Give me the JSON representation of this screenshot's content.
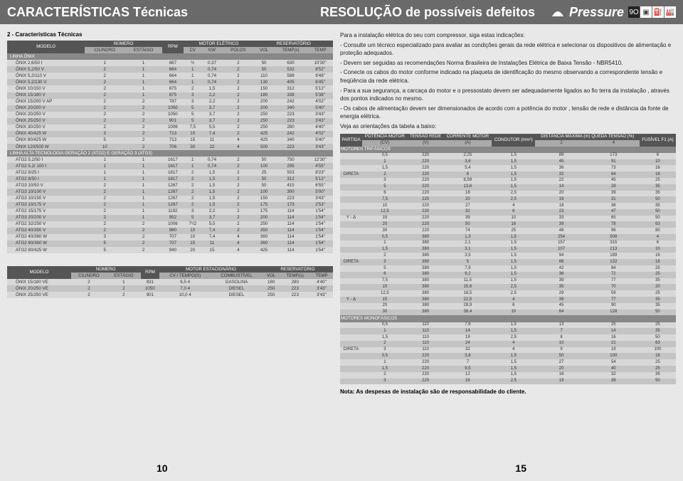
{
  "header": {
    "title_left": "CARACTERÍSTICAS Técnicas",
    "title_right": "RESOLUÇÃO de possíveis defeitos",
    "brand": "Pressure",
    "icons": [
      "9O",
      "▣",
      "⛽",
      "🏭"
    ]
  },
  "left": {
    "section_title": "2 - Características Técnicas",
    "tbl1_head_groups": [
      "MODELO",
      "NÚMERO",
      "RPM",
      "MOTOR ELÉTRICO",
      "RESERVATÓRIO"
    ],
    "tbl1_head_sub": [
      "",
      "CILINDRO",
      "ESTÁGIO",
      "",
      "CV",
      "KW",
      "PÓLOS",
      "VOL",
      "TEMP(s)",
      "TEMP"
    ],
    "linha_onix": "LINHA ÔNIX",
    "onix_rows": [
      [
        "ÔNIX 2,6/50 I",
        "1",
        "1",
        "867",
        "½",
        "0,37",
        "2",
        "50",
        "630",
        "10'30''"
      ],
      [
        "ÔNIX 5,2/50 V",
        "2",
        "1",
        "664",
        "1",
        "0,74",
        "2",
        "50",
        "532",
        "8'52''"
      ],
      [
        "ÔNIX 5,2/110 V",
        "2",
        "1",
        "664",
        "1",
        "0,74",
        "2",
        "110",
        "588",
        "9'48''"
      ],
      [
        "ÔNIX 5,2/130 V",
        "2",
        "1",
        "664",
        "1",
        "0,74",
        "2",
        "130",
        "405",
        "6'45''"
      ],
      [
        "ÔNIX 10/150 V",
        "2",
        "1",
        "875",
        "2",
        "1,5",
        "2",
        "150",
        "312",
        "5'12''"
      ],
      [
        "ÔNIX 15/180 V",
        "2",
        "1",
        "875",
        "3",
        "2,2",
        "2",
        "180",
        "338",
        "5'38''"
      ],
      [
        "ÔNIX 15/200 V AP",
        "2",
        "2",
        "787",
        "3",
        "2,2",
        "2",
        "200",
        "242",
        "4'02''"
      ],
      [
        "ÔNIX 20/200 V",
        "2",
        "2",
        "1050",
        "5",
        "3,7",
        "2",
        "200",
        "340",
        "5'40''"
      ],
      [
        "ÔNIX 20/250 V",
        "2",
        "2",
        "1050",
        "5",
        "3,7",
        "2",
        "250",
        "223",
        "3'43''"
      ],
      [
        "ÔNIX 25/250 V",
        "2",
        "2",
        "901",
        "5",
        "3,7",
        "2",
        "250",
        "223",
        "3'43''"
      ],
      [
        "ÔNIX 30/250 V",
        "2",
        "2",
        "1006",
        "7,5",
        "5,5",
        "2",
        "250",
        "280",
        "4'40''"
      ],
      [
        "ÔNIX 40/425 W",
        "3",
        "2",
        "713",
        "10",
        "7,4",
        "2",
        "425",
        "242",
        "4'02''"
      ],
      [
        "ÔNIX 60/425 W",
        "5",
        "2",
        "713",
        "15",
        "11",
        "4",
        "425",
        "340",
        "5'40''"
      ],
      [
        "ÔNIX 120/500 W",
        "10",
        "2",
        "706",
        "30",
        "22",
        "4",
        "500",
        "223",
        "3'43''"
      ]
    ],
    "linha_atg": "LINHA ALTA TECNOLOGIA GERAÇÃO 2 (ATG2) E GERAÇÃO 3 (ATG3)",
    "atg_rows": [
      [
        "ATG2 5,2/50 I",
        "1",
        "1",
        "1617",
        "1",
        "0,74",
        "2",
        "50",
        "750",
        "12'30''"
      ],
      [
        "ATG2 5,2/ 100 I",
        "1",
        "1",
        "1617",
        "1",
        "0,74",
        "2",
        "100",
        "295",
        "4'55''"
      ],
      [
        "ATG2 8/25 I",
        "1",
        "1",
        "1817",
        "2",
        "1,5",
        "2",
        "25",
        "503",
        "8'23''"
      ],
      [
        "ATG2 8/50 I",
        "1",
        "1",
        "1817",
        "2",
        "1,5",
        "2",
        "50",
        "312",
        "5'12''"
      ],
      [
        "ATG3 10/50 V",
        "2",
        "1",
        "1267",
        "2",
        "1,5",
        "2",
        "50",
        "415",
        "6'55''"
      ],
      [
        "ATG3 10/100 V",
        "2",
        "1",
        "1267",
        "2",
        "1,5",
        "2",
        "100",
        "300",
        "5'00''"
      ],
      [
        "ATG3 10/150 V",
        "2",
        "1",
        "1267",
        "2",
        "1,5",
        "2",
        "150",
        "223",
        "3'43''"
      ],
      [
        "ATG3 10/175 V",
        "2",
        "1",
        "1267",
        "2",
        "1,5",
        "2",
        "175",
        "173",
        "2'53''"
      ],
      [
        "ATG2 15/175 V",
        "2",
        "1",
        "1192",
        "3",
        "2,2",
        "2",
        "175",
        "114",
        "1'54''"
      ],
      [
        "ATG3 20/200 V",
        "2",
        "1",
        "952",
        "5",
        "3,7",
        "2",
        "200",
        "114",
        "1'54''"
      ],
      [
        "ATG2 32/250 V",
        "2",
        "2",
        "1006",
        "7¹/2",
        "5,5",
        "2",
        "250",
        "114",
        "1'54''"
      ],
      [
        "ATG2 40/350 V",
        "2",
        "2",
        "980",
        "10",
        "7,4",
        "2",
        "350",
        "114",
        "1'54''"
      ],
      [
        "ATG2 40/360 W",
        "3",
        "2",
        "707",
        "10",
        "7,4",
        "4",
        "360",
        "114",
        "1'54''"
      ],
      [
        "ATG2 60/360 W",
        "5",
        "2",
        "707",
        "15",
        "11",
        "4",
        "360",
        "114",
        "1'54''"
      ],
      [
        "ATG2 80/425 W",
        "5",
        "2",
        "940",
        "20",
        "15",
        "4",
        "425",
        "114",
        "1'54''"
      ]
    ],
    "tbl2_head_groups": [
      "MODELO",
      "NÚMERO",
      "RPM",
      "MOTOR ESTACIONÁRIO",
      "RESERVATÓRIO"
    ],
    "tbl2_head_sub": [
      "",
      "CILINDRO",
      "ESTÁGIO",
      "",
      "CV / TEMPO(S)",
      "COMBUSTÍVEL",
      "VOL",
      "TEMP(s)",
      "TEMP"
    ],
    "ve_rows": [
      [
        "ÔNIX 15/180 VE",
        "2",
        "1",
        "831",
        "6,5",
        "4",
        "GASOLINA",
        "180",
        "280",
        "4'40''"
      ],
      [
        "ÔNIX 20/250 VE",
        "2",
        "2",
        "1050",
        "7,0",
        "4",
        "DIESEL",
        "250",
        "223",
        "3'43''"
      ],
      [
        "ÔNIX 25/250 VE",
        "2",
        "2",
        "901",
        "10,0",
        "4",
        "DIESEL",
        "250",
        "223",
        "3'43''"
      ]
    ]
  },
  "right": {
    "intro": "Para a instalação elétrica do seu com compressor, siga estas indicações:",
    "p1": "- Consulte um técnico especializado para avaliar as condições gerais da rede elétrica e selecionar os dispositivos de alimentação e proteção adequados.",
    "p2": "- Devem ser seguidas as recomendações Norma Brasileira de Instalações Elétrica de Baixa Tensão - NBR5410.",
    "p3": "- Conecte os cabos do motor conforme indicado na plaqueta de identificação do mesmo observando a correspondente tensão e freqüência da rede elétrica.",
    "p4": "- Para a sua segurança, a carcaça do motor e o pressostato devem ser adequadamente ligados ao fio terra da instalação , através dos pontos indicados no mesmo.",
    "p5": "- Os cabos de alimentação devem ser dimensionados de acordo com a potência do motor , tensão de rede e distância da fonte de energia elétrica.",
    "p6": "Veja as orientações da tabela a baixo:",
    "tbl_head1": [
      "PARTIDA",
      "POTÊNCIA MOTOR",
      "TENSÃO REDE",
      "CORRENTE MOTOR",
      "CONDUTOR (mm²)",
      "DISTÂNCIA MÁXIMA (m) QUEDA TENSÃO (%)",
      "FUSÍVEL F1 (A)"
    ],
    "tbl_head2": [
      "",
      "(CV)",
      "(V)",
      "(A)",
      "",
      "2",
      "4",
      ""
    ],
    "sec_trif": "MOTORES TRIFÁSICOS",
    "trif_rows": [
      [
        "",
        "0,5",
        "220",
        "2,25",
        "1,5",
        "89",
        "173",
        "6"
      ],
      [
        "",
        "1",
        "220",
        "3,6",
        "1,5",
        "45",
        "91",
        "10"
      ],
      [
        "",
        "1,5",
        "220",
        "5,4",
        "1,5",
        "36",
        "73",
        "16"
      ],
      [
        "DIRETA",
        "2",
        "220",
        "6",
        "1,5",
        "32",
        "64",
        "16"
      ],
      [
        "",
        "3",
        "220",
        "8,59",
        "1,5",
        "22",
        "45",
        "25"
      ],
      [
        "",
        "5",
        "220",
        "13,6",
        "1,5",
        "14",
        "28",
        "35"
      ],
      [
        "",
        "6",
        "220",
        "18",
        "2,5",
        "20",
        "39",
        "35"
      ],
      [
        "",
        "7,5",
        "220",
        "20",
        "2,5",
        "16",
        "31",
        "50"
      ],
      [
        "",
        "10",
        "220",
        "27",
        "4",
        "18",
        "36",
        "35"
      ],
      [
        "",
        "12,5",
        "220",
        "32",
        "6",
        "23",
        "47",
        "50"
      ],
      [
        "Y - Δ",
        "15",
        "220",
        "39",
        "10",
        "33",
        "65",
        "50"
      ],
      [
        "",
        "20",
        "220",
        "50",
        "16",
        "39",
        "78",
        "63"
      ],
      [
        "",
        "30",
        "220",
        "74",
        "25",
        "48",
        "96",
        "80"
      ],
      [
        "",
        "0,5",
        "380",
        "1,3",
        "1,5",
        "254",
        "508",
        "4"
      ],
      [
        "",
        "1",
        "380",
        "2,1",
        "1,5",
        "157",
        "315",
        "6"
      ],
      [
        "",
        "1,5",
        "380",
        "3,1",
        "1,5",
        "107",
        "213",
        "10"
      ],
      [
        "",
        "2",
        "380",
        "3,5",
        "1,5",
        "94",
        "189",
        "16"
      ],
      [
        "DIRETA",
        "3",
        "380",
        "5",
        "1,5",
        "66",
        "132",
        "16"
      ],
      [
        "",
        "5",
        "380",
        "7,9",
        "1,5",
        "42",
        "84",
        "25"
      ],
      [
        "",
        "6",
        "380",
        "9,2",
        "1,5",
        "36",
        "72",
        "25"
      ],
      [
        "",
        "7,5",
        "380",
        "11,5",
        "1,5",
        "39",
        "77",
        "35"
      ],
      [
        "",
        "10",
        "380",
        "15,6",
        "2,5",
        "35",
        "70",
        "20"
      ],
      [
        "",
        "12,5",
        "380",
        "18,5",
        "2,5",
        "29",
        "59",
        "25"
      ],
      [
        "Y - Δ",
        "15",
        "380",
        "22,5",
        "4",
        "39",
        "77",
        "35"
      ],
      [
        "",
        "20",
        "380",
        "28,9",
        "6",
        "45",
        "90",
        "35"
      ],
      [
        "",
        "30",
        "380",
        "38,4",
        "10",
        "64",
        "128",
        "50"
      ]
    ],
    "sec_mono": "MOTORES MONOFÁSICOS",
    "mono_rows": [
      [
        "",
        "0,5",
        "110",
        "7,6",
        "1,5",
        "13",
        "25",
        "25"
      ],
      [
        "",
        "1",
        "110",
        "14",
        "1,5",
        "7",
        "14",
        "35"
      ],
      [
        "",
        "1,5",
        "110",
        "19",
        "2,5",
        "8",
        "16",
        "50"
      ],
      [
        "",
        "2",
        "110",
        "24",
        "4",
        "10",
        "21",
        "63"
      ],
      [
        "DIRETA",
        "3",
        "110",
        "32",
        "4",
        "9",
        "19",
        "100"
      ],
      [
        "",
        "0,5",
        "220",
        "3,8",
        "1,5",
        "50",
        "100",
        "16"
      ],
      [
        "",
        "1",
        "220",
        "7",
        "1,5",
        "27",
        "54",
        "25"
      ],
      [
        "",
        "1,5",
        "220",
        "9,5",
        "1,5",
        "20",
        "40",
        "25"
      ],
      [
        "",
        "2",
        "220",
        "12",
        "1,5",
        "16",
        "32",
        "35"
      ],
      [
        "",
        "3",
        "220",
        "16",
        "2,5",
        "19",
        "39",
        "50"
      ]
    ],
    "note": "Nota: As despesas de instalação são de responsabilidade do cliente."
  },
  "footer": {
    "page_left": "10",
    "page_right": "15"
  }
}
